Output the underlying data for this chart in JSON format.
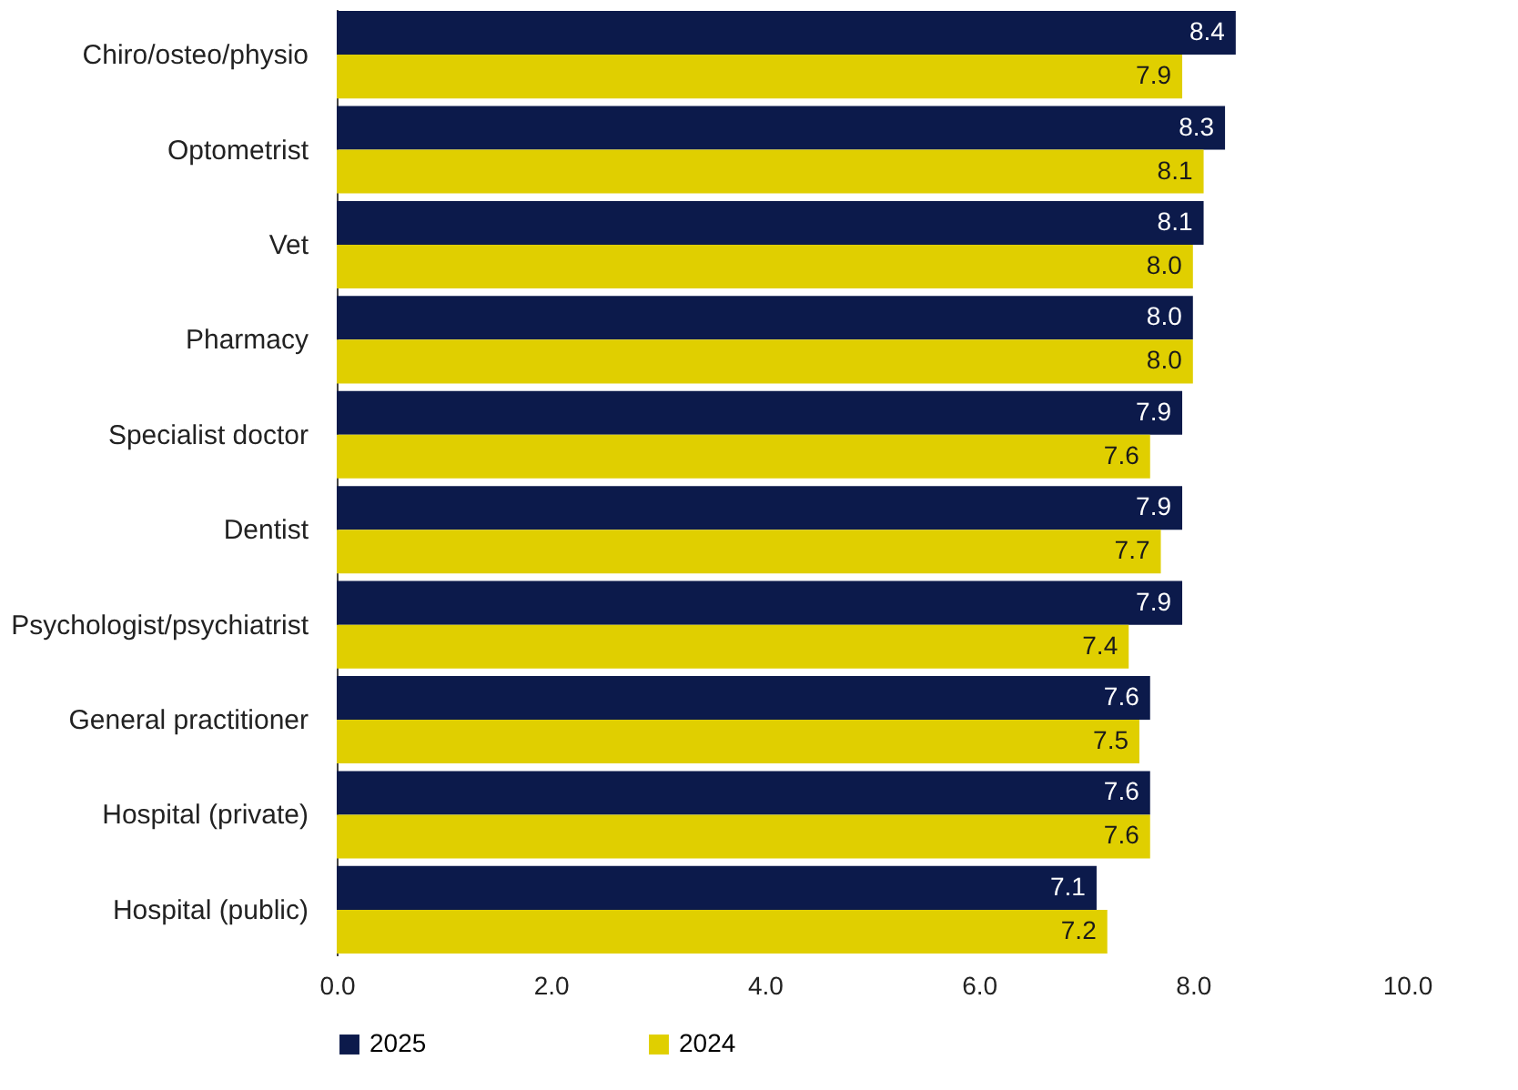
{
  "chart_data": {
    "type": "bar",
    "orientation": "horizontal",
    "categories": [
      "Chiro/osteo/physio",
      "Optometrist",
      "Vet",
      "Pharmacy",
      "Specialist doctor",
      "Dentist",
      "Psychologist/psychiatrist",
      "General practitioner",
      "Hospital (private)",
      "Hospital (public)"
    ],
    "series": [
      {
        "name": "2025",
        "color": "#0c1a4b",
        "values": [
          8.4,
          8.3,
          8.1,
          8.0,
          7.9,
          7.9,
          7.9,
          7.6,
          7.6,
          7.1
        ],
        "value_labels": [
          "8.4",
          "8.3",
          "8.1",
          "8.0",
          "7.9",
          "7.9",
          "7.9",
          "7.6",
          "7.6",
          "7.1"
        ]
      },
      {
        "name": "2024",
        "color": "#e0cf00",
        "values": [
          7.9,
          8.1,
          8.0,
          8.0,
          7.6,
          7.7,
          7.4,
          7.5,
          7.6,
          7.2
        ],
        "value_labels": [
          "7.9",
          "8.1",
          "8.0",
          "8.0",
          "7.6",
          "7.7",
          "7.4",
          "7.5",
          "7.6",
          "7.2"
        ]
      }
    ],
    "xlim": [
      0,
      10
    ],
    "xticks": [
      {
        "value": 0,
        "label": "0.0"
      },
      {
        "value": 2,
        "label": "2.0"
      },
      {
        "value": 4,
        "label": "4.0"
      },
      {
        "value": 6,
        "label": "6.0"
      },
      {
        "value": 8,
        "label": "8.0"
      },
      {
        "value": 10,
        "label": "10.0"
      }
    ],
    "grid": false,
    "legend": "bottom"
  }
}
